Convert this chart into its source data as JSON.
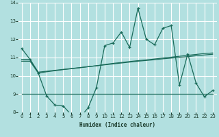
{
  "xlabel": "Humidex (Indice chaleur)",
  "bg_color": "#b2e0e0",
  "grid_color": "#ffffff",
  "line_color": "#1a6b5a",
  "xlim": [
    -0.5,
    23.5
  ],
  "ylim": [
    8,
    14
  ],
  "yticks": [
    8,
    9,
    10,
    11,
    12,
    13,
    14
  ],
  "xticks": [
    0,
    1,
    2,
    3,
    4,
    5,
    6,
    7,
    8,
    9,
    10,
    11,
    12,
    13,
    14,
    15,
    16,
    17,
    18,
    19,
    20,
    21,
    22,
    23
  ],
  "x": [
    0,
    1,
    2,
    3,
    4,
    5,
    6,
    7,
    8,
    9,
    10,
    11,
    12,
    13,
    14,
    15,
    16,
    17,
    18,
    19,
    20,
    21,
    22,
    23
  ],
  "line1_y": [
    11.5,
    10.9,
    10.15,
    8.9,
    8.4,
    8.35,
    7.85,
    7.7,
    8.25,
    9.35,
    11.65,
    11.8,
    12.4,
    11.55,
    13.7,
    12.0,
    11.7,
    12.6,
    12.75,
    9.5,
    11.2,
    9.6,
    8.85,
    9.2
  ],
  "line2_y": [
    10.9,
    10.9,
    10.2,
    10.25,
    10.3,
    10.35,
    10.4,
    10.45,
    10.5,
    10.55,
    10.62,
    10.68,
    10.73,
    10.78,
    10.83,
    10.87,
    10.92,
    10.97,
    11.02,
    11.07,
    11.12,
    11.17,
    11.22,
    11.25
  ],
  "line3_y": [
    10.8,
    10.8,
    10.15,
    10.22,
    10.28,
    10.34,
    10.39,
    10.44,
    10.5,
    10.55,
    10.6,
    10.65,
    10.7,
    10.75,
    10.8,
    10.84,
    10.88,
    10.93,
    10.97,
    11.01,
    11.05,
    11.1,
    11.14,
    11.18
  ],
  "line4_y": [
    9.0,
    9.0,
    9.0,
    9.0,
    9.0,
    9.0,
    9.0,
    9.0,
    9.0,
    9.0,
    9.0,
    9.0,
    9.0,
    9.0,
    9.0,
    9.0,
    9.0,
    9.0,
    9.0,
    9.0,
    9.0,
    9.0,
    9.0,
    9.0
  ]
}
